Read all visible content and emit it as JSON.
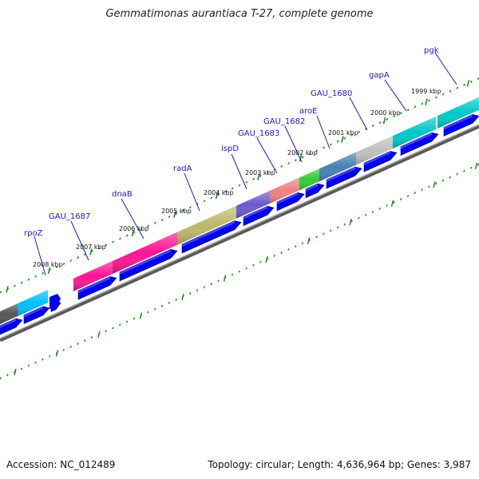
{
  "title": "Gemmatimonas aurantiaca T-27, complete genome",
  "footer": {
    "accession": "Accession: NC_012489",
    "summary": "Topology: circular; Length: 4,636,964 bp; Genes: 3,987"
  },
  "gene_labels": [
    "pgk",
    "gapA",
    "GAU_1680",
    "aroE",
    "GAU_1682",
    "GAU_1683",
    "ispD",
    "radA",
    "dnaB",
    "GAU_1687",
    "rpoZ"
  ],
  "kbp_labels": [
    "1999 kbp",
    "2000 kbp",
    "2001 kbp",
    "2002 kbp",
    "2003 kbp",
    "2004 kbp",
    "2005 kbp",
    "2006 kbp",
    "2007 kbp",
    "2008 kbp"
  ],
  "colors": {
    "backbone": "#888888",
    "cds_arrow": "#0000ee",
    "tick": "#228b22",
    "label": "#1a1acc",
    "segments": [
      "#00c8c8",
      "#c0c0c0",
      "#4682b4",
      "#32cd32",
      "#f08080",
      "#6a5acd",
      "#bdb76b",
      "#ff1493",
      "#ff1493",
      "#00bfff",
      "#555555"
    ]
  }
}
